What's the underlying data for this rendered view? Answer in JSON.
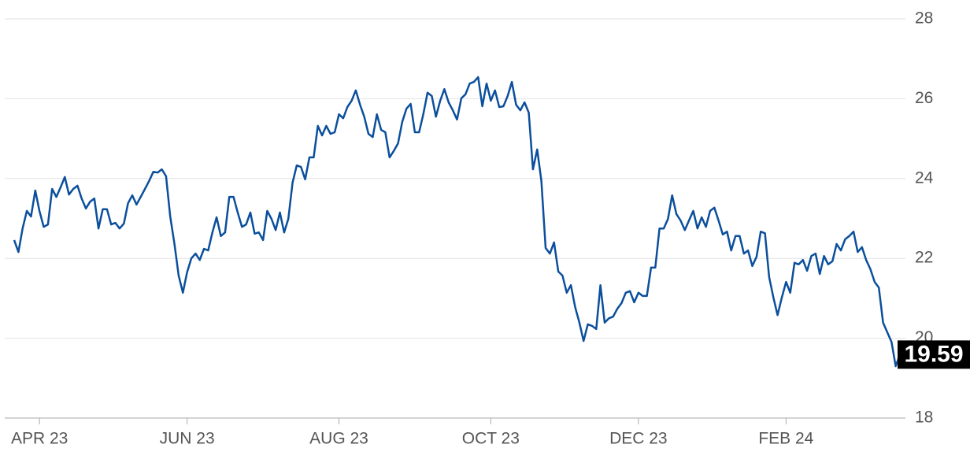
{
  "chart_data": {
    "type": "line",
    "color": "#0b4f9c",
    "grid": true,
    "ylim": [
      18,
      28
    ],
    "yticks": [
      18,
      20,
      22,
      24,
      26,
      28
    ],
    "xlim": [
      0,
      210
    ],
    "xticks": [
      {
        "value": 6,
        "label": "APR 23"
      },
      {
        "value": 41,
        "label": "JUN 23"
      },
      {
        "value": 77,
        "label": "AUG 23"
      },
      {
        "value": 113,
        "label": "OCT 23"
      },
      {
        "value": 148,
        "label": "DEC 23"
      },
      {
        "value": 183,
        "label": "FEB 24"
      }
    ],
    "values": [
      22.46,
      22.16,
      22.75,
      23.19,
      23.05,
      23.7,
      23.19,
      22.79,
      22.85,
      23.74,
      23.54,
      23.78,
      24.04,
      23.6,
      23.74,
      23.82,
      23.5,
      23.25,
      23.42,
      23.5,
      22.75,
      23.23,
      23.23,
      22.85,
      22.89,
      22.75,
      22.87,
      23.38,
      23.58,
      23.35,
      23.54,
      23.74,
      23.94,
      24.17,
      24.15,
      24.23,
      24.06,
      23.05,
      22.36,
      21.57,
      21.14,
      21.65,
      22.0,
      22.12,
      21.96,
      22.24,
      22.2,
      22.65,
      23.03,
      22.56,
      22.65,
      23.54,
      23.54,
      23.15,
      22.79,
      22.85,
      23.15,
      22.62,
      22.65,
      22.46,
      23.19,
      22.99,
      22.71,
      23.15,
      22.65,
      22.99,
      23.9,
      24.33,
      24.29,
      23.98,
      24.53,
      24.53,
      25.32,
      25.08,
      25.32,
      25.12,
      25.16,
      25.61,
      25.51,
      25.79,
      25.95,
      26.21,
      25.85,
      25.55,
      25.12,
      25.04,
      25.61,
      25.22,
      25.16,
      24.53,
      24.69,
      24.88,
      25.42,
      25.75,
      25.87,
      25.16,
      25.16,
      25.61,
      26.15,
      26.07,
      25.55,
      25.95,
      26.24,
      25.91,
      25.71,
      25.48,
      26.01,
      26.11,
      26.38,
      26.42,
      26.54,
      25.81,
      26.38,
      25.95,
      26.21,
      25.79,
      25.81,
      26.07,
      26.42,
      25.85,
      25.71,
      25.91,
      25.65,
      24.23,
      24.73,
      23.94,
      22.26,
      22.12,
      22.4,
      21.67,
      21.57,
      21.14,
      21.33,
      20.78,
      20.39,
      19.93,
      20.35,
      20.31,
      20.23,
      21.33,
      20.39,
      20.5,
      20.54,
      20.74,
      20.88,
      21.14,
      21.18,
      20.9,
      21.14,
      21.06,
      21.06,
      21.77,
      21.77,
      22.75,
      22.75,
      22.99,
      23.58,
      23.11,
      22.95,
      22.71,
      22.95,
      23.19,
      22.75,
      23.03,
      22.79,
      23.19,
      23.27,
      22.95,
      22.6,
      22.67,
      22.2,
      22.56,
      22.56,
      22.12,
      22.2,
      21.81,
      22.04,
      22.67,
      22.63,
      21.53,
      21.02,
      20.58,
      21.02,
      21.41,
      21.14,
      21.89,
      21.85,
      21.96,
      21.69,
      22.06,
      22.12,
      21.61,
      22.06,
      21.85,
      21.93,
      22.36,
      22.2,
      22.48,
      22.56,
      22.67,
      22.16,
      22.28,
      21.96,
      21.73,
      21.41,
      21.27,
      20.39,
      20.15,
      19.91,
      19.3,
      19.59
    ]
  }
}
